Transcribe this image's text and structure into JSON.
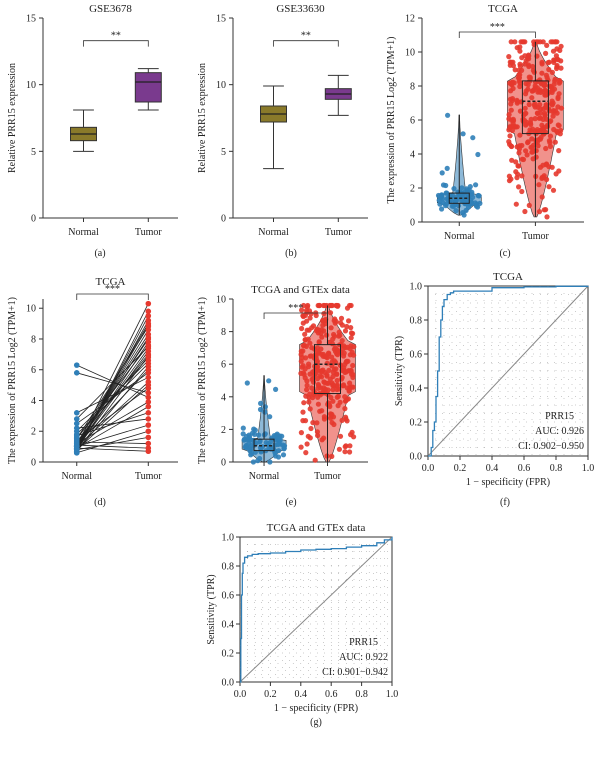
{
  "chart_data": [
    {
      "id": "a",
      "type": "box",
      "panel_label": "(a)",
      "title": "GSE3678",
      "ylabel": "Relative PRR15 expression",
      "categories": [
        "Normal",
        "Tumor"
      ],
      "ylim": [
        0,
        15
      ],
      "yticks": [
        0,
        5,
        10,
        15
      ],
      "significance": "**",
      "boxes": [
        {
          "name": "Normal",
          "min": 5.0,
          "q1": 5.8,
          "median": 6.3,
          "q3": 6.8,
          "max": 8.1,
          "color": "#8a7a2a"
        },
        {
          "name": "Tumor",
          "min": 8.1,
          "q1": 8.7,
          "median": 10.2,
          "q3": 10.9,
          "max": 11.2,
          "color": "#7a3a8e"
        }
      ]
    },
    {
      "id": "b",
      "type": "box",
      "panel_label": "(b)",
      "title": "GSE33630",
      "ylabel": "Relative PRR15 expression",
      "categories": [
        "Normal",
        "Tumor"
      ],
      "ylim": [
        0,
        15
      ],
      "yticks": [
        0,
        5,
        10,
        15
      ],
      "significance": "**",
      "boxes": [
        {
          "name": "Normal",
          "min": 3.7,
          "q1": 7.2,
          "median": 7.8,
          "q3": 8.4,
          "max": 9.9,
          "color": "#8a7a2a"
        },
        {
          "name": "Tumor",
          "min": 7.7,
          "q1": 8.9,
          "median": 9.3,
          "q3": 9.7,
          "max": 10.7,
          "color": "#7a3a8e"
        }
      ]
    },
    {
      "id": "c",
      "type": "violin",
      "panel_label": "(c)",
      "title": "TCGA",
      "ylabel": "The expression of PRR15 Log2 (TPM+1)",
      "categories": [
        "Normal",
        "Tumor"
      ],
      "ylim": [
        0,
        12
      ],
      "yticks": [
        0,
        2,
        4,
        6,
        8,
        10,
        12
      ],
      "significance": "***",
      "groups": [
        {
          "name": "Normal",
          "min": 0.4,
          "q1": 1.1,
          "median": 1.4,
          "q3": 1.7,
          "max": 6.3,
          "color": "#2f7fb8"
        },
        {
          "name": "Tumor",
          "min": 0.3,
          "q1": 5.2,
          "median": 7.1,
          "q3": 8.3,
          "max": 10.6,
          "color": "#e6392e"
        }
      ]
    },
    {
      "id": "d",
      "type": "paired",
      "panel_label": "(d)",
      "title": "TCGA",
      "ylabel": "The expression of PRR15 Log2 (TPM+1)",
      "categories": [
        "Normal",
        "Tumor"
      ],
      "ylim": [
        0,
        10.6
      ],
      "yticks": [
        0,
        2,
        4,
        6,
        8,
        10
      ],
      "significance": "***",
      "colors": {
        "Normal": "#2f7fb8",
        "Tumor": "#e6392e"
      },
      "normal_values": [
        0.6,
        0.7,
        0.8,
        0.9,
        1.0,
        1.1,
        1.2,
        0.8,
        1.5,
        1.0,
        0.9,
        1.3,
        1.6,
        2.0,
        1.8,
        0.7,
        1.1,
        2.5,
        3.2,
        1.0,
        0.8,
        1.4,
        5.8,
        6.3,
        1.2,
        0.9,
        1.7,
        2.2,
        1.0,
        0.6,
        0.8,
        1.3,
        1.1,
        0.9,
        1.5,
        1.0,
        2.8,
        0.7,
        1.2,
        1.0
      ],
      "tumor_values": [
        9.8,
        9.5,
        9.2,
        8.9,
        8.6,
        8.3,
        8.0,
        7.8,
        7.6,
        7.4,
        7.2,
        7.0,
        6.8,
        6.6,
        6.4,
        6.2,
        6.0,
        5.8,
        5.5,
        5.2,
        5.0,
        4.8,
        4.5,
        4.2,
        3.9,
        3.6,
        3.2,
        2.8,
        2.4,
        2.0,
        1.6,
        1.2,
        0.9,
        0.7,
        8.8,
        8.1,
        7.5,
        6.9,
        9.0,
        10.3
      ]
    },
    {
      "id": "e",
      "type": "violin",
      "panel_label": "(e)",
      "title": "TCGA and GTEx data",
      "ylabel": "The expression of PRR15 Log2 (TPM+1)",
      "categories": [
        "Normal",
        "Tumor"
      ],
      "ylim": [
        0,
        10
      ],
      "yticks": [
        0,
        2,
        4,
        6,
        8,
        10
      ],
      "significance": "***",
      "groups": [
        {
          "name": "Normal",
          "min": 0.0,
          "q1": 0.7,
          "median": 1.0,
          "q3": 1.4,
          "max": 5.3,
          "color": "#2f7fb8"
        },
        {
          "name": "Tumor",
          "min": 0.0,
          "q1": 4.2,
          "median": 6.0,
          "q3": 7.2,
          "max": 9.6,
          "color": "#e6392e"
        }
      ]
    },
    {
      "id": "f",
      "type": "line",
      "subtype": "roc",
      "panel_label": "(f)",
      "title": "TCGA",
      "xlabel": "1 − specificity (FPR)",
      "ylabel": "Sensitivity (TPR)",
      "xlim": [
        0,
        1
      ],
      "ylim": [
        0,
        1
      ],
      "xticks": [
        0.0,
        0.2,
        0.4,
        0.6,
        0.8,
        1.0
      ],
      "yticks": [
        0.0,
        0.2,
        0.4,
        0.6,
        0.8,
        1.0
      ],
      "series": [
        {
          "name": "PRR15",
          "color": "#2f7fb8",
          "x": [
            0,
            0.02,
            0.03,
            0.04,
            0.05,
            0.06,
            0.07,
            0.08,
            0.09,
            0.1,
            0.12,
            0.14,
            0.16,
            0.2,
            0.3,
            0.38,
            0.4,
            0.6,
            0.8,
            1.0
          ],
          "y": [
            0,
            0.05,
            0.15,
            0.2,
            0.35,
            0.5,
            0.7,
            0.8,
            0.88,
            0.92,
            0.95,
            0.96,
            0.97,
            0.97,
            0.97,
            0.97,
            0.99,
            0.995,
            0.998,
            1.0
          ]
        }
      ],
      "legend": {
        "name": "PRR15",
        "auc": "AUC: 0.926",
        "ci": "CI: 0.902−0.950"
      }
    },
    {
      "id": "g",
      "type": "line",
      "subtype": "roc",
      "panel_label": "(g)",
      "title": "TCGA and GTEx data",
      "xlabel": "1 − specificity (FPR)",
      "ylabel": "Sensitivity (TPR)",
      "xlim": [
        0,
        1
      ],
      "ylim": [
        0,
        1
      ],
      "xticks": [
        0.0,
        0.2,
        0.4,
        0.6,
        0.8,
        1.0
      ],
      "yticks": [
        0.0,
        0.2,
        0.4,
        0.6,
        0.8,
        1.0
      ],
      "series": [
        {
          "name": "PRR15",
          "color": "#2f7fb8",
          "x": [
            0,
            0.005,
            0.01,
            0.015,
            0.02,
            0.03,
            0.05,
            0.08,
            0.12,
            0.2,
            0.3,
            0.4,
            0.5,
            0.6,
            0.7,
            0.8,
            0.9,
            0.95,
            1.0
          ],
          "y": [
            0,
            0.3,
            0.6,
            0.75,
            0.82,
            0.86,
            0.87,
            0.88,
            0.885,
            0.89,
            0.9,
            0.91,
            0.915,
            0.92,
            0.93,
            0.94,
            0.96,
            0.98,
            1.0
          ]
        }
      ],
      "legend": {
        "name": "PRR15",
        "auc": "AUC: 0.922",
        "ci": "CI: 0.901−0.942"
      }
    }
  ]
}
